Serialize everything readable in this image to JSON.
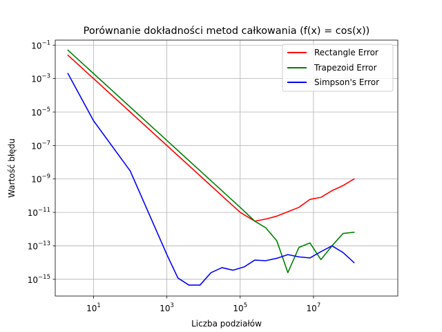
{
  "chart_data": {
    "type": "line",
    "title": "Porównanie dokładności metod całkowania (f(x) = cos(x))",
    "xlabel": "Liczba podziałów",
    "ylabel": "Wartość błędu",
    "xscale": "log",
    "yscale": "log",
    "xlim": [
      0.9,
      2000000000.0
    ],
    "ylim": [
      1e-16,
      0.2
    ],
    "grid": true,
    "legend_position": "top-right",
    "x_tick_labels": [
      {
        "base": "10",
        "exp": "1",
        "value": 10
      },
      {
        "base": "10",
        "exp": "3",
        "value": 1000
      },
      {
        "base": "10",
        "exp": "5",
        "value": 100000
      },
      {
        "base": "10",
        "exp": "7",
        "value": 10000000
      }
    ],
    "y_tick_labels": [
      {
        "base": "10",
        "exp": "−1",
        "value": 0.1
      },
      {
        "base": "10",
        "exp": "−3",
        "value": 0.001
      },
      {
        "base": "10",
        "exp": "−5",
        "value": 1e-05
      },
      {
        "base": "10",
        "exp": "−7",
        "value": 1e-07
      },
      {
        "base": "10",
        "exp": "−9",
        "value": 1e-09
      },
      {
        "base": "10",
        "exp": "−11",
        "value": 1e-11
      },
      {
        "base": "10",
        "exp": "−13",
        "value": 1e-13
      },
      {
        "base": "10",
        "exp": "−15",
        "value": 1e-15
      }
    ],
    "series": [
      {
        "name": "Rectangle Error",
        "color": "#ff0000",
        "points": [
          [
            2,
            0.025
          ],
          [
            10,
            0.001
          ],
          [
            100,
            1e-05
          ],
          [
            1000,
            1e-07
          ],
          [
            10000,
            1e-09
          ],
          [
            100000,
            1e-11
          ],
          [
            250000,
            3e-12
          ],
          [
            500000,
            4e-12
          ],
          [
            1000000,
            6e-12
          ],
          [
            2000000,
            1.1e-11
          ],
          [
            4000000,
            2e-11
          ],
          [
            8000000,
            6e-11
          ],
          [
            16000000,
            8e-11
          ],
          [
            32000000,
            2e-10
          ],
          [
            64000000,
            4e-10
          ],
          [
            128000000,
            1e-09
          ]
        ]
      },
      {
        "name": "Trapezoid Error",
        "color": "#008000",
        "points": [
          [
            2,
            0.05
          ],
          [
            10,
            0.002
          ],
          [
            100,
            2e-05
          ],
          [
            1000,
            2e-07
          ],
          [
            10000,
            2e-09
          ],
          [
            100000,
            2e-11
          ],
          [
            250000,
            3e-12
          ],
          [
            500000,
            1.2e-12
          ],
          [
            1000000,
            2e-13
          ],
          [
            2000000,
            2.5e-15
          ],
          [
            4000000,
            8e-14
          ],
          [
            8000000,
            1.5e-13
          ],
          [
            16000000,
            1.5e-14
          ],
          [
            32000000,
            1e-13
          ],
          [
            64000000,
            5.5e-13
          ],
          [
            128000000,
            6.5e-13
          ]
        ]
      },
      {
        "name": "Simpson's Error",
        "color": "#0000ff",
        "points": [
          [
            2,
            0.002
          ],
          [
            10,
            3e-06
          ],
          [
            100,
            3e-09
          ],
          [
            1000,
            3e-14
          ],
          [
            2000,
            1.2e-15
          ],
          [
            4000,
            4.5e-16
          ],
          [
            8000,
            4.5e-16
          ],
          [
            16000,
            2.5e-15
          ],
          [
            32000,
            5e-15
          ],
          [
            64000,
            3.5e-15
          ],
          [
            128000,
            5.5e-15
          ],
          [
            250000,
            1.4e-14
          ],
          [
            500000,
            1.3e-14
          ],
          [
            1000000,
            1.8e-14
          ],
          [
            2000000,
            3e-14
          ],
          [
            4000000,
            2.2e-14
          ],
          [
            8000000,
            1.9e-14
          ],
          [
            16000000,
            4.5e-14
          ],
          [
            32000000,
            1e-13
          ],
          [
            64000000,
            4e-14
          ],
          [
            128000000,
            1e-14
          ]
        ]
      }
    ]
  }
}
